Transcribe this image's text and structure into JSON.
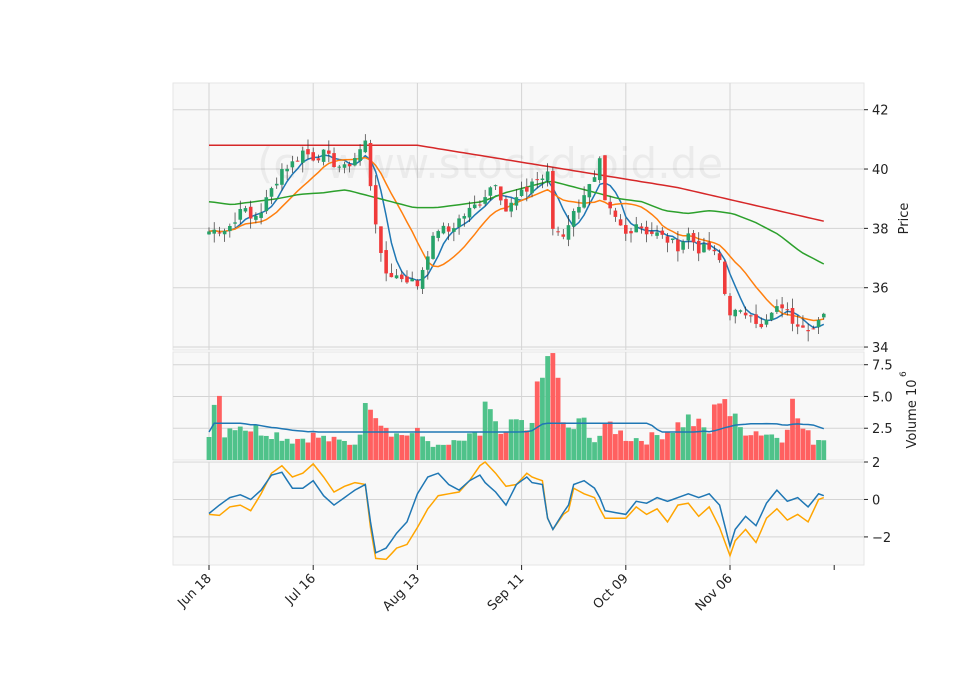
{
  "watermark": "(c) www.stockdroid.de",
  "chart_data": [
    {
      "type": "candlestick",
      "panel": "price",
      "ylabel": "Price",
      "ylim": [
        33.9,
        42.9
      ],
      "yticks": [
        34,
        36,
        38,
        40,
        42
      ],
      "grid": true,
      "series": [
        {
          "name": "moving-average-short",
          "color": "#1f77b4"
        },
        {
          "name": "moving-average-medium",
          "color": "#ff7f0e"
        },
        {
          "name": "moving-average-long",
          "color": "#2ca02c"
        },
        {
          "name": "moving-average-very-long",
          "color": "#d62728"
        }
      ],
      "colors": {
        "up": "#26a269",
        "down": "#f03a3a"
      }
    },
    {
      "type": "bar",
      "panel": "volume",
      "ylabel": "Volume",
      "yunit": "10^6",
      "ylim": [
        0,
        8.5
      ],
      "yticks": [
        2.5,
        5.0,
        7.5
      ],
      "ytick_labels": [
        "2.5",
        "5.0",
        "7.5"
      ],
      "grid": true,
      "series": [
        {
          "name": "volume-moving-average",
          "color": "#1f77b4"
        }
      ]
    },
    {
      "type": "line",
      "panel": "oscillator",
      "ylim": [
        -3.5,
        2.0
      ],
      "yticks": [
        -2,
        0,
        2
      ],
      "ytick_labels": [
        "−2",
        "0",
        "2"
      ],
      "grid": true,
      "series": [
        {
          "name": "oscillator-line-a",
          "color": "#1f77b4"
        },
        {
          "name": "oscillator-line-b",
          "color": "#ffa500"
        }
      ]
    }
  ],
  "x_axis": {
    "ticks": [
      {
        "label": "Jun 18",
        "index": 0
      },
      {
        "label": "Jul 16",
        "index": 20
      },
      {
        "label": "Aug 13",
        "index": 40
      },
      {
        "label": "Sep 11",
        "index": 60
      },
      {
        "label": "Oct 09",
        "index": 80
      },
      {
        "label": "Nov 06",
        "index": 100
      },
      {
        "label": "",
        "index": 120
      }
    ],
    "count": 119
  },
  "price_keyframes": [
    [
      0,
      37.9
    ],
    [
      3,
      38.0
    ],
    [
      5,
      38.2
    ],
    [
      6,
      38.8
    ],
    [
      8,
      38.3
    ],
    [
      10,
      38.6
    ],
    [
      12,
      39.3
    ],
    [
      14,
      40.0
    ],
    [
      16,
      40.2
    ],
    [
      18,
      40.6
    ],
    [
      20,
      40.4
    ],
    [
      22,
      40.5
    ],
    [
      24,
      40.2
    ],
    [
      26,
      40.0
    ],
    [
      28,
      40.4
    ],
    [
      30,
      40.9
    ],
    [
      31,
      39.5
    ],
    [
      33,
      37.0
    ],
    [
      34,
      36.5
    ],
    [
      36,
      36.4
    ],
    [
      38,
      36.3
    ],
    [
      40,
      36.1
    ],
    [
      42,
      37.2
    ],
    [
      44,
      38.0
    ],
    [
      46,
      37.9
    ],
    [
      48,
      38.3
    ],
    [
      50,
      38.6
    ],
    [
      52,
      38.9
    ],
    [
      54,
      39.4
    ],
    [
      55,
      39.6
    ],
    [
      57,
      38.6
    ],
    [
      59,
      39.0
    ],
    [
      61,
      39.3
    ],
    [
      62,
      39.6
    ],
    [
      64,
      39.7
    ],
    [
      65,
      39.8
    ],
    [
      66,
      38.0
    ],
    [
      68,
      37.8
    ],
    [
      69,
      38.2
    ],
    [
      70,
      38.5
    ],
    [
      72,
      39.2
    ],
    [
      74,
      39.6
    ],
    [
      75,
      40.2
    ],
    [
      76,
      38.8
    ],
    [
      78,
      38.3
    ],
    [
      80,
      37.8
    ],
    [
      82,
      38.2
    ],
    [
      84,
      37.9
    ],
    [
      86,
      37.8
    ],
    [
      88,
      37.6
    ],
    [
      90,
      37.4
    ],
    [
      92,
      37.8
    ],
    [
      94,
      37.3
    ],
    [
      96,
      37.3
    ],
    [
      98,
      36.9
    ],
    [
      99,
      35.8
    ],
    [
      100,
      35.2
    ],
    [
      102,
      35.1
    ],
    [
      104,
      35.2
    ],
    [
      106,
      34.6
    ],
    [
      108,
      35.1
    ],
    [
      110,
      35.4
    ],
    [
      112,
      34.9
    ],
    [
      114,
      34.8
    ],
    [
      116,
      34.6
    ],
    [
      118,
      35.0
    ]
  ],
  "volume_keyframes": [
    [
      0,
      2.2
    ],
    [
      2,
      6.5
    ],
    [
      3,
      2.0
    ],
    [
      5,
      3.0
    ],
    [
      8,
      2.5
    ],
    [
      12,
      2.2
    ],
    [
      16,
      1.6
    ],
    [
      20,
      1.9
    ],
    [
      24,
      1.5
    ],
    [
      28,
      1.3
    ],
    [
      31,
      5.0
    ],
    [
      32,
      4.2
    ],
    [
      33,
      3.2
    ],
    [
      36,
      2.0
    ],
    [
      40,
      2.1
    ],
    [
      44,
      1.0
    ],
    [
      48,
      1.4
    ],
    [
      52,
      2.0
    ],
    [
      53,
      4.6
    ],
    [
      56,
      1.7
    ],
    [
      59,
      3.0
    ],
    [
      61,
      2.4
    ],
    [
      66,
      8.9
    ],
    [
      68,
      2.6
    ],
    [
      70,
      2.5
    ],
    [
      72,
      3.0
    ],
    [
      74,
      1.5
    ],
    [
      77,
      2.8
    ],
    [
      80,
      1.8
    ],
    [
      84,
      1.6
    ],
    [
      88,
      2.3
    ],
    [
      92,
      3.2
    ],
    [
      96,
      2.2
    ],
    [
      98,
      5.3
    ],
    [
      99,
      5.2
    ],
    [
      100,
      3.6
    ],
    [
      102,
      2.5
    ],
    [
      106,
      2.2
    ],
    [
      110,
      1.8
    ],
    [
      112,
      4.3
    ],
    [
      114,
      2.4
    ],
    [
      116,
      1.5
    ],
    [
      118,
      1.8
    ]
  ],
  "oscillator_keyframes": [
    [
      0,
      -0.75,
      -0.8
    ],
    [
      2,
      -0.3,
      -0.85
    ],
    [
      4,
      0.1,
      -0.4
    ],
    [
      6,
      0.25,
      -0.3
    ],
    [
      8,
      0.0,
      -0.6
    ],
    [
      10,
      0.5,
      0.3
    ],
    [
      12,
      1.3,
      1.4
    ],
    [
      14,
      1.45,
      1.8
    ],
    [
      16,
      0.6,
      1.2
    ],
    [
      18,
      0.6,
      1.4
    ],
    [
      20,
      1.0,
      1.9
    ],
    [
      22,
      0.2,
      1.2
    ],
    [
      24,
      -0.3,
      0.4
    ],
    [
      26,
      0.1,
      0.7
    ],
    [
      28,
      0.5,
      0.9
    ],
    [
      30,
      0.8,
      0.8
    ],
    [
      31,
      -1.2,
      -1.5
    ],
    [
      32,
      -2.85,
      -3.15
    ],
    [
      34,
      -2.6,
      -3.2
    ],
    [
      36,
      -1.8,
      -2.6
    ],
    [
      38,
      -1.2,
      -2.4
    ],
    [
      40,
      0.3,
      -1.5
    ],
    [
      42,
      1.2,
      -0.5
    ],
    [
      44,
      1.4,
      0.2
    ],
    [
      46,
      0.8,
      0.3
    ],
    [
      48,
      0.5,
      0.4
    ],
    [
      50,
      1.0,
      1.0
    ],
    [
      52,
      1.3,
      1.8
    ],
    [
      53,
      0.9,
      2.0
    ],
    [
      55,
      0.4,
      1.4
    ],
    [
      57,
      -0.3,
      0.7
    ],
    [
      59,
      0.8,
      0.8
    ],
    [
      61,
      1.2,
      1.4
    ],
    [
      62,
      0.9,
      1.2
    ],
    [
      64,
      0.8,
      1.0
    ],
    [
      65,
      -1.0,
      -1.0
    ],
    [
      66,
      -1.6,
      -1.6
    ],
    [
      68,
      -0.7,
      -0.8
    ],
    [
      69,
      -0.3,
      -0.6
    ],
    [
      70,
      0.8,
      0.6
    ],
    [
      72,
      1.0,
      0.3
    ],
    [
      74,
      0.6,
      0.1
    ],
    [
      75,
      0.1,
      -0.5
    ],
    [
      76,
      -0.6,
      -1.0
    ],
    [
      78,
      -0.7,
      -1.0
    ],
    [
      80,
      -0.8,
      -1.0
    ],
    [
      82,
      -0.1,
      -0.4
    ],
    [
      84,
      -0.2,
      -0.8
    ],
    [
      86,
      0.1,
      -0.5
    ],
    [
      88,
      -0.1,
      -1.2
    ],
    [
      90,
      0.1,
      -0.3
    ],
    [
      92,
      0.3,
      -0.2
    ],
    [
      94,
      0.1,
      -0.9
    ],
    [
      96,
      0.3,
      -0.4
    ],
    [
      98,
      -0.3,
      -1.5
    ],
    [
      100,
      -2.5,
      -3.0
    ],
    [
      101,
      -1.6,
      -2.2
    ],
    [
      103,
      -0.9,
      -1.6
    ],
    [
      105,
      -1.4,
      -2.3
    ],
    [
      107,
      -0.2,
      -1.0
    ],
    [
      109,
      0.5,
      -0.5
    ],
    [
      111,
      -0.1,
      -1.1
    ],
    [
      113,
      0.1,
      -0.8
    ],
    [
      115,
      -0.4,
      -1.2
    ],
    [
      117,
      0.3,
      0.0
    ],
    [
      118,
      0.2,
      0.1
    ]
  ]
}
